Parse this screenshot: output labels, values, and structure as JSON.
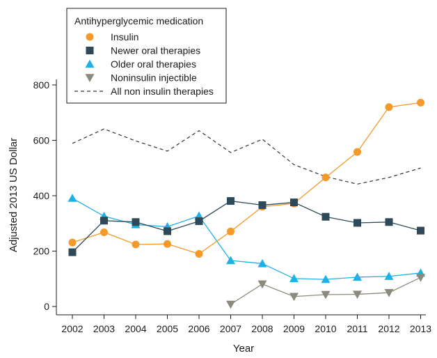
{
  "chart_data": {
    "type": "line",
    "title": "",
    "xlabel": "Year",
    "ylabel": "Adjusted 2013 US Dollar",
    "x": [
      2002,
      2003,
      2004,
      2005,
      2006,
      2007,
      2008,
      2009,
      2010,
      2011,
      2012,
      2013
    ],
    "ylim": [
      -30,
      820
    ],
    "yticks": [
      0,
      200,
      400,
      600,
      800
    ],
    "legend": {
      "title": "Antihyperglycemic medication",
      "placement": "top-left"
    },
    "series": [
      {
        "name": "Insulin",
        "marker": "circle",
        "color": "#f39a2b",
        "dashed": false,
        "values": [
          231,
          268,
          224,
          226,
          190,
          271,
          360,
          372,
          466,
          558,
          720,
          736
        ]
      },
      {
        "name": "Newer oral therapies",
        "marker": "square",
        "color": "#2e4a59",
        "dashed": false,
        "values": [
          196,
          310,
          305,
          272,
          308,
          381,
          366,
          376,
          324,
          302,
          305,
          274
        ]
      },
      {
        "name": "Older oral therapies",
        "marker": "triangle-up",
        "color": "#1fb0e6",
        "dashed": false,
        "values": [
          391,
          326,
          296,
          288,
          327,
          166,
          155,
          101,
          98,
          106,
          109,
          121
        ]
      },
      {
        "name": "Noninsulin injectible",
        "marker": "triangle-down",
        "color": "#8c8a7d",
        "dashed": false,
        "values": [
          null,
          null,
          null,
          null,
          null,
          8,
          81,
          36,
          43,
          44,
          50,
          105
        ]
      },
      {
        "name": "All non insulin therapies",
        "marker": "none",
        "color": "#333333",
        "dashed": true,
        "values": [
          589,
          641,
          598,
          561,
          635,
          556,
          604,
          512,
          469,
          442,
          466,
          500
        ]
      }
    ]
  }
}
